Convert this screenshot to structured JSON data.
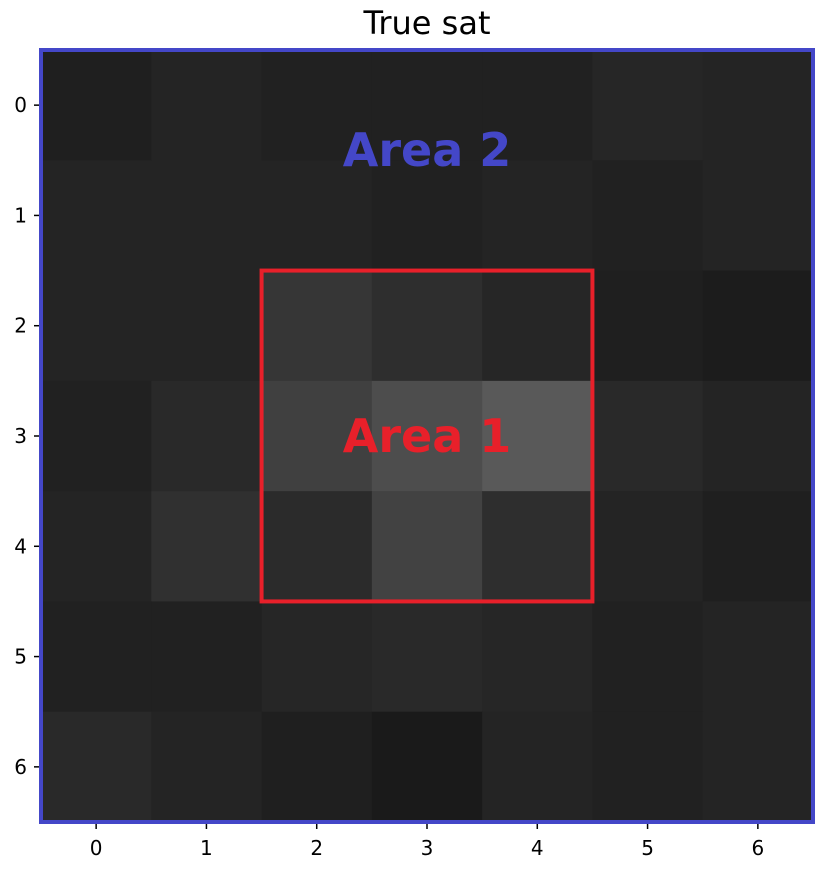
{
  "chart_data": {
    "type": "heatmap",
    "title": "True sat",
    "xlabel": "",
    "ylabel": "",
    "x_ticks": [
      "0",
      "1",
      "2",
      "3",
      "4",
      "5",
      "6"
    ],
    "y_ticks": [
      "0",
      "1",
      "2",
      "3",
      "4",
      "5",
      "6"
    ],
    "colormap": "gray",
    "grid": false,
    "values": [
      [
        0.12,
        0.14,
        0.13,
        0.13,
        0.13,
        0.15,
        0.14
      ],
      [
        0.14,
        0.14,
        0.14,
        0.13,
        0.14,
        0.13,
        0.14
      ],
      [
        0.14,
        0.14,
        0.21,
        0.18,
        0.15,
        0.12,
        0.11
      ],
      [
        0.13,
        0.16,
        0.25,
        0.3,
        0.35,
        0.16,
        0.14
      ],
      [
        0.14,
        0.19,
        0.17,
        0.26,
        0.18,
        0.14,
        0.12
      ],
      [
        0.13,
        0.13,
        0.15,
        0.16,
        0.15,
        0.13,
        0.14
      ],
      [
        0.16,
        0.14,
        0.12,
        0.1,
        0.14,
        0.13,
        0.14
      ]
    ],
    "annotations": [
      {
        "label": "Area 1",
        "color": "#e8202a",
        "x_range": [
          1.5,
          4.5
        ],
        "y_range": [
          1.5,
          4.5
        ]
      },
      {
        "label": "Area 2",
        "color": "#4447c8",
        "x_range": [
          -0.5,
          6.5
        ],
        "y_range": [
          -0.5,
          6.5
        ]
      }
    ]
  }
}
